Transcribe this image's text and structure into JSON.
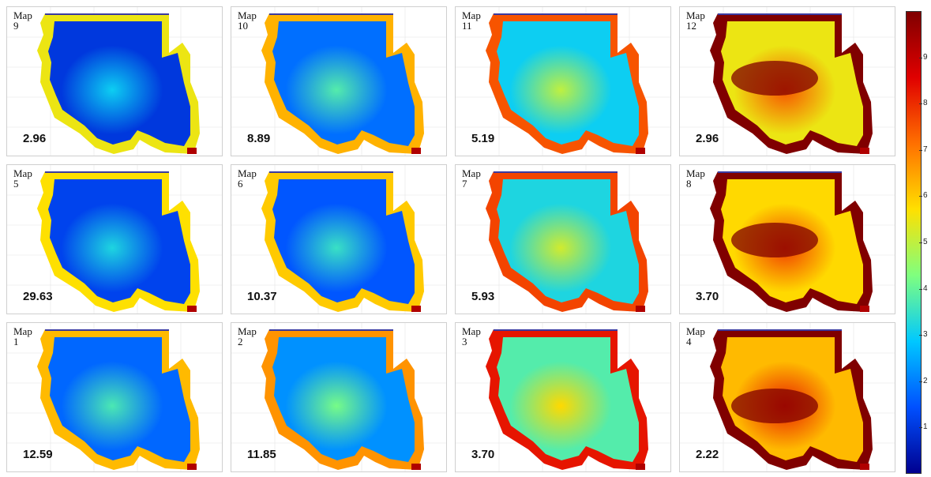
{
  "panels": [
    {
      "title": "Map\n9",
      "value": "2.96",
      "level": 0.1
    },
    {
      "title": "Map\n10",
      "value": "8.89",
      "level": 0.18
    },
    {
      "title": "Map\n11",
      "value": "5.19",
      "level": 0.3
    },
    {
      "title": "Map\n12",
      "value": "2.96",
      "level": 0.55
    },
    {
      "title": "Map\n5",
      "value": "29.63",
      "level": 0.12
    },
    {
      "title": "Map\n6",
      "value": "10.37",
      "level": 0.15
    },
    {
      "title": "Map\n7",
      "value": "5.93",
      "level": 0.32
    },
    {
      "title": "Map\n8",
      "value": "3.70",
      "level": 0.58
    },
    {
      "title": "Map\n1",
      "value": "12.59",
      "level": 0.17
    },
    {
      "title": "Map\n2",
      "value": "11.85",
      "level": 0.22
    },
    {
      "title": "Map\n3",
      "value": "3.70",
      "level": 0.38
    },
    {
      "title": "Map\n4",
      "value": "2.22",
      "level": 0.62
    }
  ],
  "colorbar": {
    "ticks": [
      "1",
      "2",
      "3",
      "4",
      "5",
      "6",
      "7",
      "8",
      "9"
    ],
    "colors": [
      "#00008f",
      "#0050ff",
      "#00c8ff",
      "#7fff7f",
      "#ffe000",
      "#ff7000",
      "#e00000",
      "#800000"
    ]
  }
}
